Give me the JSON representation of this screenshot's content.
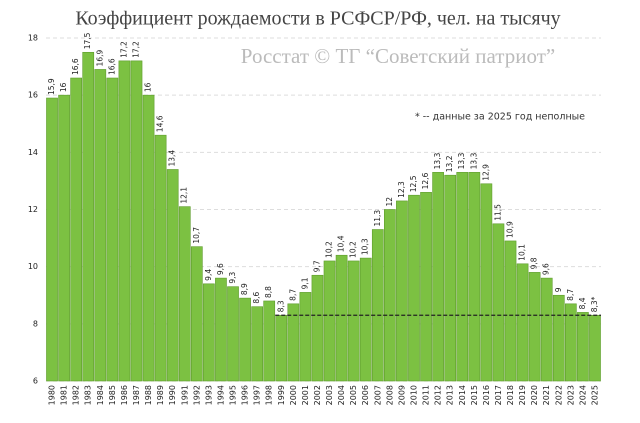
{
  "chart_data": {
    "type": "bar",
    "title": "Коэффициент рождаемости в РСФСР/РФ, чел. на тысячу",
    "watermark": "Росстат © ТГ “Советский патриот”",
    "note": "* -- данные за 2025 год неполные",
    "categories": [
      "1980",
      "1981",
      "1982",
      "1983",
      "1984",
      "1985",
      "1986",
      "1987",
      "1988",
      "1989",
      "1990",
      "1991",
      "1992",
      "1993",
      "1994",
      "1995",
      "1996",
      "1997",
      "1998",
      "1999",
      "2000",
      "2001",
      "2002",
      "2003",
      "2004",
      "2005",
      "2006",
      "2007",
      "2008",
      "2009",
      "2010",
      "2011",
      "2012",
      "2013",
      "2014",
      "2015",
      "2016",
      "2017",
      "2018",
      "2019",
      "2020",
      "2021",
      "2022",
      "2023",
      "2024",
      "2025"
    ],
    "values": [
      15.9,
      16,
      16.6,
      17.5,
      16.9,
      16.6,
      17.2,
      17.2,
      16,
      14.6,
      13.4,
      12.1,
      10.7,
      9.4,
      9.6,
      9.3,
      8.9,
      8.6,
      8.8,
      8.3,
      8.7,
      9.1,
      9.7,
      10.2,
      10.4,
      10.2,
      10.3,
      11.3,
      12,
      12.3,
      12.5,
      12.6,
      13.3,
      13.2,
      13.3,
      13.3,
      12.9,
      11.5,
      10.9,
      10.1,
      9.8,
      9.6,
      9,
      8.7,
      8.4,
      8.3
    ],
    "value_labels": [
      "15,9",
      "16",
      "16,6",
      "17,5",
      "16,9",
      "16,6",
      "17,2",
      "17,2",
      "16",
      "14,6",
      "13,4",
      "12,1",
      "10,7",
      "9,4",
      "9,6",
      "9,3",
      "8,9",
      "8,6",
      "8,8",
      "8,3",
      "8,7",
      "9,1",
      "9,7",
      "10,2",
      "10,4",
      "10,2",
      "10,3",
      "11,3",
      "12",
      "12,3",
      "12,5",
      "12,6",
      "13,3",
      "13,2",
      "13,3",
      "13,3",
      "12,9",
      "11,5",
      "10,9",
      "10,1",
      "9,8",
      "9,6",
      "9",
      "8,7",
      "8,4",
      "8,3*"
    ],
    "color": "#7cc142",
    "ylim": [
      6,
      18
    ],
    "yticks": [
      6,
      8,
      10,
      12,
      14,
      16,
      18
    ],
    "grid": true,
    "reference_line": 8.3,
    "reference_from": "1999"
  }
}
